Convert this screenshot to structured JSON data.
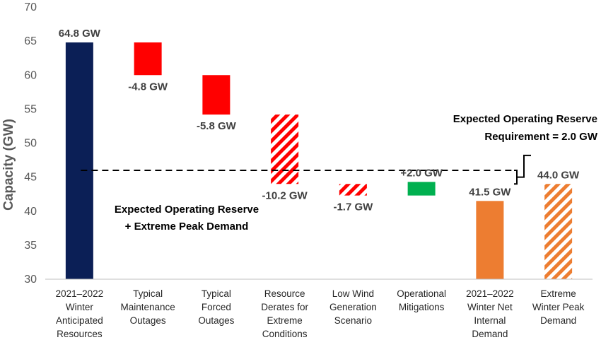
{
  "chart_data": {
    "type": "bar",
    "subtype": "waterfall",
    "ylabel": "Capacity (GW)",
    "ylim": [
      30,
      70
    ],
    "yticks": [
      30,
      35,
      40,
      45,
      50,
      55,
      60,
      65,
      70
    ],
    "grid": false,
    "categories": [
      [
        "2021–2022",
        "Winter",
        "Anticipated",
        "Resources"
      ],
      [
        "Typical",
        "Maintenance",
        "Outages"
      ],
      [
        "Typical",
        "Forced",
        "Outages"
      ],
      [
        "Resource",
        "Derates for",
        "Extreme",
        "Conditions"
      ],
      [
        "Low Wind",
        "Generation",
        "Scenario"
      ],
      [
        "Operational",
        "Mitigations"
      ],
      [
        "2021–2022",
        "Winter Net",
        "Internal",
        "Demand"
      ],
      [
        "Extreme",
        "Winter Peak",
        "Demand"
      ]
    ],
    "bars": [
      {
        "start": 30,
        "end": 64.8,
        "label": "64.8 GW",
        "color": "#0b1f56",
        "pattern": "solid"
      },
      {
        "start": 64.8,
        "end": 60.0,
        "label": "-4.8 GW",
        "color": "#ff0000",
        "pattern": "solid"
      },
      {
        "start": 60.0,
        "end": 54.2,
        "label": "-5.8 GW",
        "color": "#ff0000",
        "pattern": "solid"
      },
      {
        "start": 54.2,
        "end": 44.0,
        "label": "-10.2 GW",
        "color": "#ff0000",
        "pattern": "hatch"
      },
      {
        "start": 44.0,
        "end": 42.3,
        "label": "-1.7 GW",
        "color": "#ff0000",
        "pattern": "hatch"
      },
      {
        "start": 42.3,
        "end": 44.3,
        "label": "+2.0 GW",
        "color": "#00b050",
        "pattern": "solid"
      },
      {
        "start": 30,
        "end": 41.5,
        "label": "41.5 GW",
        "color": "#ed7d31",
        "pattern": "solid"
      },
      {
        "start": 30,
        "end": 44.0,
        "label": "44.0 GW",
        "color": "#ed7d31",
        "pattern": "hatch"
      }
    ],
    "reference_line": {
      "value": 46.0,
      "style": "dashed"
    },
    "annotations": {
      "reserve_plus_demand": [
        "Expected Operating Reserve",
        "+ Extreme Peak Demand"
      ],
      "reserve_requirement": [
        "Expected Operating Reserve",
        "Requirement = 2.0 GW"
      ]
    }
  }
}
